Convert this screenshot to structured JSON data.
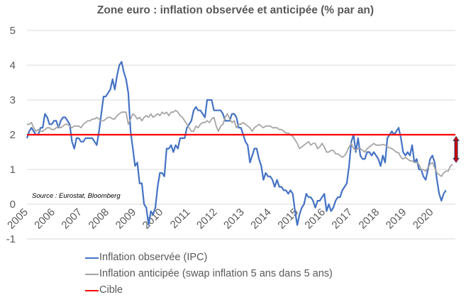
{
  "chart_data": {
    "type": "line",
    "title": "Zone euro : inflation observée et anticipée (% par an)",
    "xlabel": "",
    "ylabel": "",
    "ylim": [
      -1,
      5
    ],
    "yticks": [
      "5",
      "4",
      "3",
      "2",
      "1",
      "0",
      "-1"
    ],
    "ytick_values": [
      5,
      4,
      3,
      2,
      1,
      0,
      -1
    ],
    "xticks": [
      "2005",
      "2006",
      "2007",
      "2008",
      "2009",
      "2010",
      "2011",
      "2012",
      "2013",
      "2014",
      "2015",
      "2016",
      "2017",
      "2018",
      "2019",
      "2020"
    ],
    "grid": "horizontal",
    "start": "2005-01",
    "frequency": "monthly",
    "annotation": "Source : Eurostat, Bloomberg",
    "series": [
      {
        "name": "Inflation observée (IPC)",
        "color": "#4472C4",
        "values": [
          1.9,
          2.1,
          2.2,
          2.1,
          2.0,
          2.0,
          2.2,
          2.2,
          2.6,
          2.5,
          2.3,
          2.3,
          2.4,
          2.4,
          2.2,
          2.4,
          2.5,
          2.5,
          2.4,
          2.3,
          1.8,
          1.6,
          1.9,
          1.9,
          1.8,
          1.8,
          1.9,
          1.9,
          1.9,
          1.9,
          1.8,
          1.7,
          2.1,
          2.6,
          3.1,
          3.1,
          3.2,
          3.3,
          3.6,
          3.3,
          3.7,
          4.0,
          4.1,
          3.8,
          3.6,
          3.2,
          2.1,
          1.6,
          1.1,
          1.2,
          0.6,
          0.6,
          0.0,
          -0.1,
          -0.6,
          -0.2,
          -0.3,
          -0.1,
          0.5,
          0.9,
          0.9,
          0.8,
          1.6,
          1.6,
          1.7,
          1.5,
          1.7,
          1.6,
          1.9,
          1.9,
          1.9,
          2.2,
          2.3,
          2.4,
          2.7,
          2.8,
          2.7,
          2.7,
          2.6,
          2.5,
          3.0,
          3.0,
          3.0,
          2.7,
          2.7,
          2.7,
          2.7,
          2.6,
          2.4,
          2.4,
          2.4,
          2.6,
          2.6,
          2.5,
          2.2,
          2.2,
          2.0,
          1.8,
          1.7,
          1.2,
          1.4,
          1.6,
          1.6,
          1.3,
          1.1,
          0.7,
          0.9,
          0.8,
          0.8,
          0.7,
          0.5,
          0.7,
          0.5,
          0.5,
          0.4,
          0.4,
          0.3,
          0.4,
          0.3,
          -0.2,
          -0.6,
          -0.3,
          -0.1,
          0.0,
          0.3,
          0.2,
          0.2,
          0.1,
          -0.1,
          0.1,
          0.1,
          0.2,
          0.3,
          -0.2,
          0.0,
          -0.2,
          -0.1,
          0.1,
          0.2,
          0.2,
          0.4,
          0.5,
          0.6,
          1.1,
          1.8,
          2.0,
          1.5,
          1.9,
          1.4,
          1.3,
          1.3,
          1.5,
          1.5,
          1.4,
          1.5,
          1.4,
          1.3,
          1.1,
          1.4,
          1.2,
          1.9,
          2.0,
          2.1,
          2.0,
          2.1,
          2.2,
          1.9,
          1.5,
          1.4,
          1.5,
          1.4,
          1.7,
          1.2,
          1.3,
          1.0,
          1.0,
          0.8,
          0.7,
          1.0,
          1.3,
          1.4,
          1.2,
          0.7,
          0.3,
          0.1,
          0.3,
          0.4
        ]
      },
      {
        "name": "Inflation anticipée (swap inflation 5 ans dans 5 ans)",
        "color": "#A5A5A5",
        "values": [
          2.3,
          2.3,
          2.35,
          2.2,
          2.1,
          2.15,
          2.1,
          2.1,
          2.15,
          2.2,
          2.2,
          2.15,
          2.15,
          2.2,
          2.25,
          2.2,
          2.25,
          2.3,
          2.3,
          2.25,
          2.2,
          2.25,
          2.25,
          2.25,
          2.2,
          2.3,
          2.35,
          2.4,
          2.4,
          2.45,
          2.45,
          2.5,
          2.45,
          2.4,
          2.4,
          2.45,
          2.5,
          2.5,
          2.45,
          2.45,
          2.55,
          2.6,
          2.65,
          2.65,
          2.65,
          2.3,
          2.45,
          2.6,
          2.55,
          2.45,
          2.5,
          2.4,
          2.5,
          2.55,
          2.5,
          2.6,
          2.5,
          2.55,
          2.6,
          2.55,
          2.65,
          2.6,
          2.65,
          2.55,
          2.65,
          2.65,
          2.7,
          2.65,
          2.55,
          2.5,
          2.4,
          2.3,
          2.2,
          2.1,
          2.1,
          2.25,
          2.2,
          2.3,
          2.35,
          2.35,
          2.4,
          2.35,
          2.45,
          2.5,
          2.25,
          2.1,
          2.25,
          2.3,
          2.5,
          2.6,
          2.45,
          2.35,
          2.4,
          2.2,
          2.3,
          2.3,
          2.35,
          2.3,
          2.25,
          2.2,
          2.1,
          2.2,
          2.25,
          2.3,
          2.25,
          2.2,
          2.25,
          2.25,
          2.25,
          2.2,
          2.2,
          2.2,
          2.15,
          2.15,
          2.1,
          2.05,
          2.05,
          2.0,
          1.95,
          1.85,
          1.75,
          1.6,
          1.65,
          1.7,
          1.75,
          1.8,
          1.7,
          1.75,
          1.75,
          1.6,
          1.65,
          1.75,
          1.65,
          1.5,
          1.5,
          1.55,
          1.55,
          1.45,
          1.45,
          1.4,
          1.35,
          1.4,
          1.5,
          1.65,
          1.75,
          1.6,
          1.55,
          1.6,
          1.6,
          1.55,
          1.5,
          1.6,
          1.65,
          1.7,
          1.75,
          1.7,
          1.7,
          1.7,
          1.72,
          1.7,
          1.65,
          1.62,
          1.6,
          1.55,
          1.5,
          1.48,
          1.35,
          1.3,
          1.35,
          1.3,
          1.25,
          1.25,
          1.2,
          1.2,
          1.15,
          1.0,
          1.0,
          0.95,
          1.05,
          1.15,
          1.2,
          1.05,
          0.9,
          0.85,
          0.8,
          0.9,
          0.95,
          0.95,
          1.1,
          1.15
        ]
      },
      {
        "name": "Cible",
        "color": "#FF0000",
        "constant": 2
      }
    ],
    "gap_marker": {
      "type": "double-arrow",
      "color": "#E00000",
      "from": 1.95,
      "to": 1.2
    },
    "legend": {
      "position": "bottom",
      "entries": [
        {
          "label": "Inflation observée (IPC)",
          "color": "#4472C4"
        },
        {
          "label": "Inflation anticipée (swap inflation 5 ans dans 5 ans)",
          "color": "#A5A5A5"
        },
        {
          "label": "Cible",
          "color": "#FF0000"
        }
      ]
    }
  }
}
